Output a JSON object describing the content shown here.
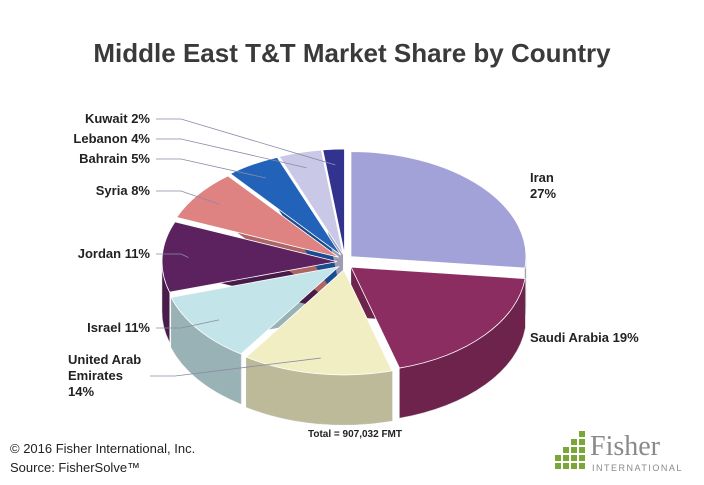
{
  "chart_data": {
    "type": "pie3d",
    "title": "Middle East T&T Market Share by Country",
    "categories": [
      "Iran",
      "Saudi Arabia",
      "United Arab Emirates",
      "Israel",
      "Jordan",
      "Syria",
      "Bahrain",
      "Lebanon",
      "Kuwait"
    ],
    "values": [
      27,
      19,
      14,
      11,
      11,
      8,
      5,
      4,
      2
    ],
    "value_labels": [
      "27%",
      "19%",
      "14%",
      "11%",
      "11%",
      "8%",
      "5%",
      "4%",
      "2%"
    ],
    "colors": [
      "#a3a2d8",
      "#8c2d62",
      "#f1eec4",
      "#c3e4e8",
      "#5c2260",
      "#de8282",
      "#2262b8",
      "#c9c8e6",
      "#32328f"
    ],
    "annotation": "Total = 907,032 FMT"
  },
  "footer": {
    "copyright": "© 2016 Fisher International, Inc.",
    "source": "Source: FisherSolve™"
  },
  "logo": {
    "name": "Fisher",
    "subtitle": "INTERNATIONAL"
  }
}
